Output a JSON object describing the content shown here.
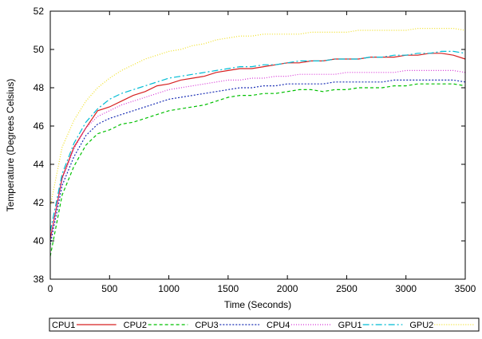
{
  "chart_data": {
    "type": "line",
    "title": "",
    "xlabel": "Time (Seconds)",
    "ylabel": "Temperature (Degrees Celsius)",
    "xlim": [
      0,
      3500
    ],
    "ylim": [
      38,
      52
    ],
    "x_ticks": [
      "0",
      "500",
      "1000",
      "1500",
      "2000",
      "2500",
      "3000",
      "3500"
    ],
    "y_ticks": [
      "38",
      "40",
      "42",
      "44",
      "46",
      "48",
      "50",
      "52"
    ],
    "grid": false,
    "legend_position": "bottom",
    "x": [
      0,
      100,
      200,
      300,
      400,
      500,
      600,
      700,
      800,
      900,
      1000,
      1100,
      1200,
      1300,
      1400,
      1500,
      1600,
      1700,
      1800,
      1900,
      2000,
      2100,
      2200,
      2300,
      2400,
      2500,
      2600,
      2700,
      2800,
      2900,
      3000,
      3100,
      3200,
      3300,
      3400,
      3500
    ],
    "series": [
      {
        "name": "CPU1",
        "color": "#d62020",
        "dash": "",
        "values": [
          40.1,
          43.3,
          44.9,
          45.9,
          46.8,
          47.0,
          47.3,
          47.6,
          47.8,
          48.1,
          48.2,
          48.4,
          48.5,
          48.6,
          48.8,
          48.9,
          49.0,
          49.0,
          49.1,
          49.2,
          49.3,
          49.3,
          49.4,
          49.4,
          49.5,
          49.5,
          49.5,
          49.6,
          49.6,
          49.6,
          49.7,
          49.7,
          49.8,
          49.8,
          49.7,
          49.5
        ]
      },
      {
        "name": "CPU2",
        "color": "#00c000",
        "dash": "4,3",
        "values": [
          39.2,
          42.4,
          43.9,
          45.0,
          45.6,
          45.8,
          46.1,
          46.2,
          46.4,
          46.6,
          46.8,
          46.9,
          47.0,
          47.1,
          47.3,
          47.5,
          47.6,
          47.6,
          47.7,
          47.7,
          47.8,
          47.9,
          47.9,
          47.8,
          47.9,
          47.9,
          48.0,
          48.0,
          48.0,
          48.1,
          48.1,
          48.2,
          48.2,
          48.2,
          48.2,
          48.1
        ]
      },
      {
        "name": "CPU3",
        "color": "#1a2fb5",
        "dash": "2,2",
        "values": [
          39.8,
          42.9,
          44.4,
          45.5,
          46.1,
          46.4,
          46.6,
          46.8,
          47.0,
          47.2,
          47.4,
          47.5,
          47.6,
          47.7,
          47.8,
          47.9,
          48.0,
          48.0,
          48.1,
          48.1,
          48.2,
          48.2,
          48.2,
          48.2,
          48.3,
          48.3,
          48.3,
          48.3,
          48.3,
          48.4,
          48.4,
          48.4,
          48.4,
          48.4,
          48.4,
          48.3
        ]
      },
      {
        "name": "CPU4",
        "color": "#d633d6",
        "dash": "1,2",
        "values": [
          40.1,
          43.2,
          44.8,
          45.9,
          46.5,
          46.8,
          47.1,
          47.3,
          47.5,
          47.7,
          47.9,
          48.0,
          48.1,
          48.2,
          48.3,
          48.4,
          48.4,
          48.5,
          48.5,
          48.6,
          48.6,
          48.7,
          48.7,
          48.7,
          48.7,
          48.8,
          48.8,
          48.8,
          48.8,
          48.8,
          48.9,
          48.9,
          48.9,
          48.9,
          48.9,
          48.8
        ]
      },
      {
        "name": "GPU1",
        "color": "#00bcd4",
        "dash": "8,3,2,3",
        "values": [
          40.5,
          43.5,
          45.1,
          46.2,
          46.9,
          47.4,
          47.7,
          47.9,
          48.1,
          48.3,
          48.5,
          48.6,
          48.7,
          48.8,
          48.9,
          49.0,
          49.1,
          49.1,
          49.2,
          49.2,
          49.3,
          49.4,
          49.4,
          49.4,
          49.5,
          49.5,
          49.5,
          49.6,
          49.6,
          49.7,
          49.7,
          49.8,
          49.8,
          49.9,
          49.9,
          49.8
        ]
      },
      {
        "name": "GPU2",
        "color": "#f0e020",
        "dash": "1,2",
        "values": [
          41.8,
          44.9,
          46.3,
          47.3,
          48.0,
          48.5,
          48.9,
          49.2,
          49.5,
          49.7,
          49.9,
          50.0,
          50.2,
          50.3,
          50.5,
          50.6,
          50.7,
          50.7,
          50.8,
          50.8,
          50.8,
          50.8,
          50.9,
          50.9,
          50.9,
          50.9,
          51.0,
          51.0,
          51.0,
          51.0,
          51.0,
          51.1,
          51.1,
          51.1,
          51.1,
          51.0
        ]
      }
    ]
  }
}
